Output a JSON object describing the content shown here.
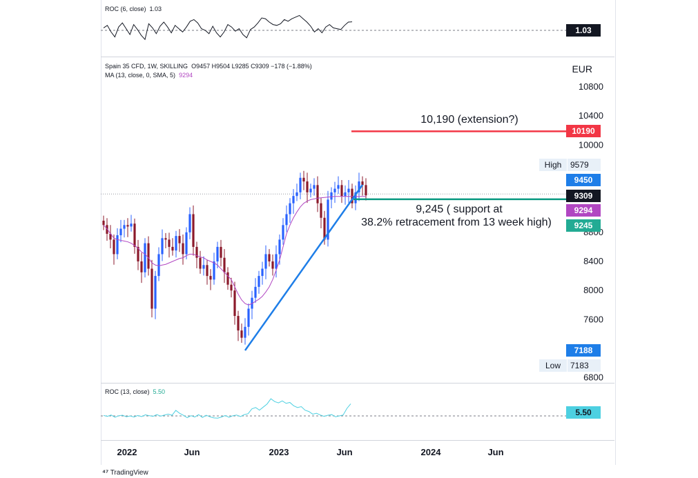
{
  "roc6": {
    "label": "ROC (6, close)",
    "value": "1.03",
    "tag": "1.03"
  },
  "main": {
    "title_line": "Spain 35 CFD, 1W, SKILLING",
    "ohlc": "O9457 H9504 L9285 C9309 −178 (−1.88%)",
    "ma_label": "MA (13, close, 0, SMA, 5)",
    "ma_value": "9294",
    "currency": "EUR"
  },
  "roc13": {
    "label": "ROC (13, close)",
    "value": "5.50",
    "tag": "5.50"
  },
  "price_tags": {
    "extension": "10190",
    "high_label": "High",
    "high": "9579",
    "t9450": "9450",
    "close": "9309",
    "ma": "9294",
    "support": "9245",
    "t7188": "7188",
    "low_label": "Low",
    "low": "7183"
  },
  "annotations": {
    "extension": "10,190 (extension?)",
    "support_line1": "9,245 ( support at",
    "support_line2": "38.2% retracement from 13 week high)"
  },
  "x_labels": [
    "2022",
    "Jun",
    "2023",
    "Jun",
    "2024",
    "Jun"
  ],
  "brand": "TradingView",
  "colors": {
    "up": "#2962ff",
    "down": "#8b1a2b",
    "ma": "#b146c2",
    "extension": "#f23645",
    "support": "#089981",
    "trend": "#1e7ee8",
    "roc13": "#4dd0e1"
  },
  "chart_data": {
    "type": "candlestick",
    "title": "Spain 35 CFD, 1W",
    "ylabel": "EUR",
    "ylim": [
      6700,
      11100
    ],
    "y_ticks": [
      6800,
      7600,
      8000,
      8400,
      8800,
      10000,
      10400,
      10800
    ],
    "x_ticks": [
      "2022",
      "Jun",
      "2023",
      "Jun",
      "2024",
      "Jun"
    ],
    "levels": {
      "extension": 10190,
      "support": 9245,
      "close": 9309,
      "ma": 9294,
      "high": 9579,
      "low": 7183
    },
    "closes": [
      8900,
      8780,
      8700,
      8500,
      8760,
      8850,
      8900,
      8880,
      8920,
      8600,
      8400,
      8250,
      8650,
      8300,
      7750,
      8200,
      8500,
      8720,
      8700,
      8600,
      8550,
      8750,
      8650,
      8500,
      8800,
      9050,
      8600,
      8450,
      8300,
      8350,
      8200,
      8150,
      8400,
      8600,
      8450,
      8250,
      8080,
      8000,
      7650,
      7450,
      7350,
      7500,
      7750,
      7900,
      8050,
      8200,
      8300,
      8500,
      8400,
      8300,
      8500,
      8700,
      8900,
      9050,
      9200,
      9300,
      9350,
      9550,
      9500,
      9350,
      9400,
      9450,
      9200,
      9000,
      8700,
      9250,
      9350,
      9400,
      9450,
      9300,
      9350,
      9400,
      9200,
      9350,
      9500,
      9450,
      9309
    ],
    "ma13": [
      8900,
      8850,
      8780,
      8720,
      8700,
      8690,
      8680,
      8670,
      8650,
      8620,
      8580,
      8530,
      8500,
      8450,
      8380,
      8350,
      8340,
      8350,
      8360,
      8380,
      8400,
      8420,
      8440,
      8450,
      8480,
      8500,
      8500,
      8480,
      8460,
      8450,
      8420,
      8400,
      8380,
      8350,
      8300,
      8250,
      8200,
      8150,
      8050,
      7950,
      7870,
      7820,
      7800,
      7820,
      7850,
      7880,
      7920,
      7980,
      8050,
      8150,
      8280,
      8420,
      8600,
      8780,
      8900,
      9000,
      9080,
      9150,
      9200,
      9230,
      9250,
      9260,
      9270,
      9275,
      9280,
      9285,
      9290,
      9294,
      9294,
      9294,
      9294,
      9294,
      9294,
      9294,
      9294,
      9294,
      9294
    ],
    "roc6": [
      0.3,
      0.6,
      -0.2,
      -0.8,
      0.4,
      0.9,
      0.2,
      -0.5,
      0.7,
      0.1,
      -0.6,
      -1.1,
      0.8,
      0.3,
      -0.4,
      0.5,
      1.0,
      0.4,
      -0.3,
      0.6,
      0.2,
      -0.2,
      0.4,
      1.1,
      1.3,
      0.9,
      0.2,
      0.0,
      -0.4,
      0.5,
      -0.3,
      -0.8,
      -0.2,
      0.7,
      0.4,
      -0.1,
      0.2,
      -0.5,
      -0.9,
      0.1,
      0.4,
      0.9,
      1.5,
      1.4,
      1.0,
      0.7,
      0.6,
      0.8,
      1.3,
      1.1,
      1.4,
      1.6,
      1.8,
      1.4,
      1.0,
      0.5,
      -0.2,
      0.2,
      -0.3,
      0.4,
      0.7,
      0.3,
      0.2,
      0.1,
      0.6,
      1.0,
      1.03
    ],
    "roc13": [
      0.2,
      -0.2,
      0.4,
      -0.6,
      0.1,
      0.3,
      -0.4,
      0.0,
      -0.5,
      0.2,
      -0.3,
      0.5,
      0.1,
      -0.2,
      0.6,
      -0.1,
      0.4,
      0.8,
      0.3,
      2.5,
      1.2,
      0.3,
      -0.8,
      0.1,
      -0.5,
      0.6,
      -0.7,
      0.3,
      -0.4,
      -0.9,
      -1.0,
      -0.5,
      0.2,
      -0.6,
      0.1,
      0.4,
      -0.3,
      0.6,
      1.0,
      3.2,
      3.8,
      2.6,
      4.0,
      5.4,
      7.8,
      6.5,
      5.9,
      6.8,
      5.7,
      6.1,
      4.6,
      3.8,
      4.2,
      2.6,
      2.0,
      0.8,
      1.2,
      0.4,
      -0.2,
      0.3,
      0.6,
      -0.4,
      0.0,
      0.4,
      3.4,
      5.5
    ]
  }
}
